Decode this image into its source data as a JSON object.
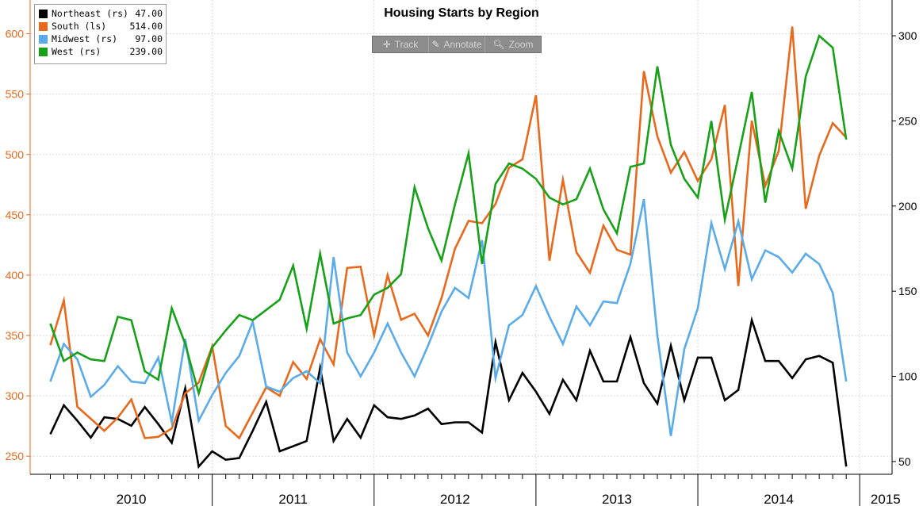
{
  "chart_data": {
    "type": "line",
    "title": "Housing Starts by Region",
    "y_left": {
      "range": [
        235,
        628
      ],
      "ticks": [
        250,
        300,
        350,
        400,
        450,
        500,
        550,
        600
      ]
    },
    "y_right": {
      "range": [
        42.5,
        321.0
      ],
      "ticks": [
        50,
        100,
        150,
        200,
        250,
        300
      ]
    },
    "x_range": [
      2009.875,
      2015.2
    ],
    "year_labels": [
      {
        "label": "2010",
        "x": 2010.5
      },
      {
        "label": "2011",
        "x": 2011.5
      },
      {
        "label": "2012",
        "x": 2012.5
      },
      {
        "label": "2013",
        "x": 2013.5
      },
      {
        "label": "2014",
        "x": 2014.5
      },
      {
        "label": "2015",
        "x": 2015.16
      }
    ],
    "year_boundaries": [
      2011.0,
      2012.0,
      2013.0,
      2014.0,
      2015.0
    ],
    "grid": true,
    "legend_position": "top-left",
    "start": "2010-01",
    "series": [
      {
        "name": "Northeast (rs)",
        "color": "#000000",
        "axis": "right",
        "last": "47.00",
        "values": [
          66,
          83,
          74,
          64,
          76,
          75,
          71,
          82,
          72,
          61,
          93,
          47,
          56,
          51,
          52,
          68,
          85,
          56,
          59,
          62,
          105,
          62,
          75,
          64,
          83,
          76,
          75,
          77,
          81,
          72,
          73,
          73,
          67,
          120,
          86,
          102,
          91,
          78,
          98,
          86,
          115,
          97,
          97,
          123,
          96,
          84,
          118,
          86,
          111,
          111,
          86,
          92,
          133,
          109,
          109,
          99,
          110,
          112,
          108,
          47
        ]
      },
      {
        "name": "South (ls)",
        "color": "#e8691c",
        "axis": "left",
        "last": "514.00",
        "values": [
          342,
          379,
          291,
          281,
          271,
          282,
          297,
          265,
          266,
          273,
          302,
          311,
          341,
          275,
          265,
          286,
          307,
          300,
          328,
          314,
          347,
          326,
          406,
          407,
          350,
          400,
          363,
          368,
          350,
          381,
          422,
          445,
          443,
          459,
          489,
          496,
          549,
          412,
          479,
          419,
          402,
          441,
          421,
          417,
          569,
          515,
          485,
          502,
          478,
          496,
          541,
          391,
          528,
          474,
          503,
          606,
          455,
          499,
          526,
          514
        ]
      },
      {
        "name": "Midwest (rs)",
        "color": "#5aabea",
        "axis": "right",
        "last": "97.00",
        "values": [
          97,
          119,
          110,
          88,
          95,
          106,
          97,
          96,
          111,
          73,
          122,
          74,
          89,
          102,
          112,
          132,
          94,
          91,
          99,
          103,
          96,
          170,
          114,
          100,
          114,
          131,
          114,
          100,
          118,
          138,
          152,
          146,
          180,
          99,
          130,
          136,
          153,
          135,
          119,
          141,
          130,
          144,
          143,
          166,
          204,
          124,
          65,
          116,
          140,
          190,
          163,
          191,
          157,
          174,
          170,
          161,
          172,
          166,
          149,
          97
        ]
      },
      {
        "name": "West (rs)",
        "color": "#17a117",
        "axis": "right",
        "last": "239.00",
        "values": [
          131,
          109,
          114,
          110,
          109,
          135,
          133,
          103,
          98,
          140,
          119,
          90,
          117,
          127,
          136,
          133,
          139,
          145,
          165,
          128,
          172,
          131,
          134,
          136,
          148,
          152,
          160,
          211,
          187,
          168,
          201,
          231,
          166,
          213,
          225,
          222,
          216,
          205,
          201,
          204,
          222,
          198,
          184,
          223,
          225,
          282,
          236,
          216,
          205,
          250,
          192,
          229,
          267,
          202,
          244,
          222,
          276,
          300,
          293,
          239
        ]
      }
    ]
  },
  "toolbar": {
    "track_label": "Track",
    "annotate_label": "Annotate",
    "zoom_label": "Zoom"
  }
}
